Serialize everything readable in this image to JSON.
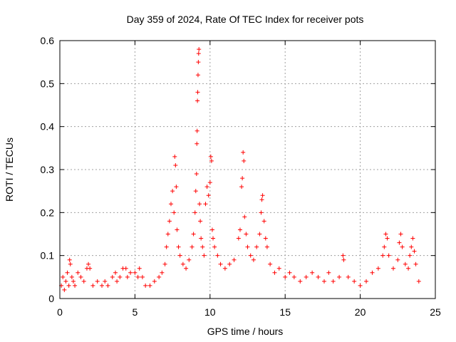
{
  "chart_data": {
    "type": "scatter",
    "title": "Day 359 of 2024, Rate Of TEC Index for receiver pots",
    "xlabel": "GPS time / hours",
    "ylabel": "ROTI / TECUs",
    "xlim": [
      0,
      25
    ],
    "ylim": [
      0,
      0.6
    ],
    "x_ticks": [
      "0",
      "5",
      "10",
      "15",
      "20",
      "25"
    ],
    "y_ticks": [
      "0",
      "0.1",
      "0.2",
      "0.3",
      "0.4",
      "0.5",
      "0.6"
    ],
    "grid": true,
    "marker": "+",
    "color": "#ff0000",
    "series": [
      {
        "values_note_x_hours": [],
        "points": [
          [
            0.1,
            0.03
          ],
          [
            0.2,
            0.05
          ],
          [
            0.3,
            0.02
          ],
          [
            0.4,
            0.04
          ],
          [
            0.5,
            0.06
          ],
          [
            0.6,
            0.03
          ],
          [
            0.65,
            0.09
          ],
          [
            0.7,
            0.08
          ],
          [
            0.8,
            0.05
          ],
          [
            0.9,
            0.04
          ],
          [
            1.0,
            0.03
          ],
          [
            1.2,
            0.06
          ],
          [
            1.4,
            0.05
          ],
          [
            1.6,
            0.04
          ],
          [
            1.8,
            0.07
          ],
          [
            1.9,
            0.08
          ],
          [
            2.0,
            0.07
          ],
          [
            2.2,
            0.03
          ],
          [
            2.5,
            0.04
          ],
          [
            2.8,
            0.03
          ],
          [
            3.0,
            0.04
          ],
          [
            3.2,
            0.03
          ],
          [
            3.5,
            0.05
          ],
          [
            3.7,
            0.06
          ],
          [
            3.8,
            0.04
          ],
          [
            4.0,
            0.05
          ],
          [
            4.2,
            0.07
          ],
          [
            4.4,
            0.07
          ],
          [
            4.5,
            0.05
          ],
          [
            4.7,
            0.06
          ],
          [
            5.0,
            0.06
          ],
          [
            5.2,
            0.05
          ],
          [
            5.3,
            0.07
          ],
          [
            5.5,
            0.05
          ],
          [
            5.7,
            0.03
          ],
          [
            6.0,
            0.03
          ],
          [
            6.3,
            0.04
          ],
          [
            6.6,
            0.05
          ],
          [
            6.8,
            0.06
          ],
          [
            7.0,
            0.08
          ],
          [
            7.1,
            0.12
          ],
          [
            7.2,
            0.15
          ],
          [
            7.3,
            0.18
          ],
          [
            7.4,
            0.22
          ],
          [
            7.5,
            0.25
          ],
          [
            7.6,
            0.2
          ],
          [
            7.65,
            0.33
          ],
          [
            7.7,
            0.31
          ],
          [
            7.75,
            0.26
          ],
          [
            7.8,
            0.16
          ],
          [
            7.9,
            0.12
          ],
          [
            8.0,
            0.1
          ],
          [
            8.2,
            0.08
          ],
          [
            8.4,
            0.07
          ],
          [
            8.6,
            0.09
          ],
          [
            8.8,
            0.12
          ],
          [
            8.9,
            0.15
          ],
          [
            9.0,
            0.2
          ],
          [
            9.05,
            0.25
          ],
          [
            9.1,
            0.29
          ],
          [
            9.12,
            0.36
          ],
          [
            9.14,
            0.39
          ],
          [
            9.16,
            0.46
          ],
          [
            9.18,
            0.48
          ],
          [
            9.2,
            0.52
          ],
          [
            9.22,
            0.55
          ],
          [
            9.24,
            0.57
          ],
          [
            9.26,
            0.58
          ],
          [
            9.3,
            0.22
          ],
          [
            9.35,
            0.18
          ],
          [
            9.4,
            0.14
          ],
          [
            9.5,
            0.12
          ],
          [
            9.6,
            0.1
          ],
          [
            9.7,
            0.22
          ],
          [
            9.8,
            0.26
          ],
          [
            9.9,
            0.24
          ],
          [
            10.0,
            0.27
          ],
          [
            10.05,
            0.33
          ],
          [
            10.1,
            0.32
          ],
          [
            10.15,
            0.16
          ],
          [
            10.2,
            0.14
          ],
          [
            10.3,
            0.12
          ],
          [
            10.5,
            0.1
          ],
          [
            10.7,
            0.08
          ],
          [
            11.0,
            0.07
          ],
          [
            11.3,
            0.08
          ],
          [
            11.6,
            0.09
          ],
          [
            11.9,
            0.14
          ],
          [
            12.0,
            0.16
          ],
          [
            12.1,
            0.26
          ],
          [
            12.15,
            0.28
          ],
          [
            12.2,
            0.34
          ],
          [
            12.25,
            0.32
          ],
          [
            12.3,
            0.19
          ],
          [
            12.4,
            0.15
          ],
          [
            12.5,
            0.12
          ],
          [
            12.7,
            0.1
          ],
          [
            12.9,
            0.09
          ],
          [
            13.1,
            0.12
          ],
          [
            13.3,
            0.15
          ],
          [
            13.4,
            0.2
          ],
          [
            13.45,
            0.23
          ],
          [
            13.5,
            0.24
          ],
          [
            13.6,
            0.18
          ],
          [
            13.7,
            0.14
          ],
          [
            13.8,
            0.12
          ],
          [
            14.0,
            0.08
          ],
          [
            14.3,
            0.06
          ],
          [
            14.6,
            0.07
          ],
          [
            15.0,
            0.05
          ],
          [
            15.3,
            0.06
          ],
          [
            15.6,
            0.05
          ],
          [
            16.0,
            0.04
          ],
          [
            16.4,
            0.05
          ],
          [
            16.8,
            0.06
          ],
          [
            17.2,
            0.05
          ],
          [
            17.6,
            0.04
          ],
          [
            17.9,
            0.06
          ],
          [
            18.2,
            0.04
          ],
          [
            18.6,
            0.05
          ],
          [
            18.85,
            0.1
          ],
          [
            18.9,
            0.09
          ],
          [
            19.2,
            0.05
          ],
          [
            19.6,
            0.04
          ],
          [
            20.0,
            0.03
          ],
          [
            20.4,
            0.04
          ],
          [
            20.8,
            0.06
          ],
          [
            21.2,
            0.07
          ],
          [
            21.5,
            0.1
          ],
          [
            21.6,
            0.12
          ],
          [
            21.7,
            0.15
          ],
          [
            21.8,
            0.14
          ],
          [
            21.9,
            0.1
          ],
          [
            22.2,
            0.07
          ],
          [
            22.5,
            0.09
          ],
          [
            22.6,
            0.13
          ],
          [
            22.7,
            0.15
          ],
          [
            22.8,
            0.12
          ],
          [
            23.0,
            0.08
          ],
          [
            23.2,
            0.07
          ],
          [
            23.3,
            0.1
          ],
          [
            23.4,
            0.12
          ],
          [
            23.5,
            0.14
          ],
          [
            23.6,
            0.11
          ],
          [
            23.7,
            0.08
          ],
          [
            23.9,
            0.04
          ]
        ]
      }
    ]
  }
}
